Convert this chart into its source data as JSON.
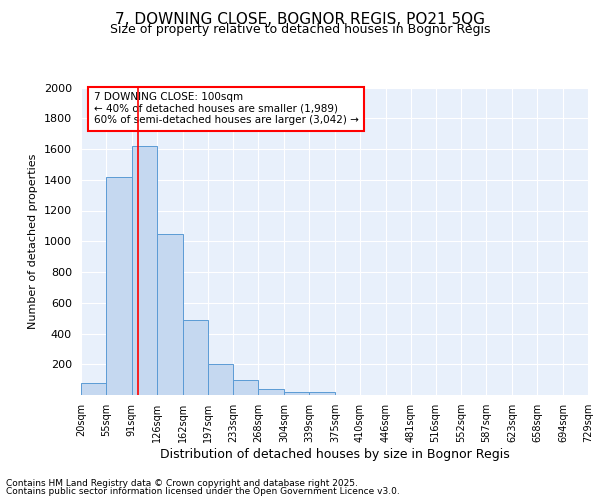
{
  "title1": "7, DOWNING CLOSE, BOGNOR REGIS, PO21 5QG",
  "title2": "Size of property relative to detached houses in Bognor Regis",
  "xlabel": "Distribution of detached houses by size in Bognor Regis",
  "ylabel": "Number of detached properties",
  "bin_labels": [
    "20sqm",
    "55sqm",
    "91sqm",
    "126sqm",
    "162sqm",
    "197sqm",
    "233sqm",
    "268sqm",
    "304sqm",
    "339sqm",
    "375sqm",
    "410sqm",
    "446sqm",
    "481sqm",
    "516sqm",
    "552sqm",
    "587sqm",
    "623sqm",
    "658sqm",
    "694sqm",
    "729sqm"
  ],
  "bin_edges": [
    20,
    55,
    91,
    126,
    162,
    197,
    233,
    268,
    304,
    339,
    375,
    410,
    446,
    481,
    516,
    552,
    587,
    623,
    658,
    694,
    729
  ],
  "bar_heights": [
    80,
    1420,
    1620,
    1050,
    490,
    200,
    100,
    40,
    20,
    20,
    0,
    0,
    0,
    0,
    0,
    0,
    0,
    0,
    0,
    0
  ],
  "bar_color": "#c5d8f0",
  "bar_edge_color": "#5b9bd5",
  "red_line_x": 100,
  "annotation_title": "7 DOWNING CLOSE: 100sqm",
  "annotation_line2": "← 40% of detached houses are smaller (1,989)",
  "annotation_line3": "60% of semi-detached houses are larger (3,042) →",
  "footer1": "Contains HM Land Registry data © Crown copyright and database right 2025.",
  "footer2": "Contains public sector information licensed under the Open Government Licence v3.0.",
  "bg_color": "#ffffff",
  "plot_bg_color": "#e8f0fb",
  "grid_color": "#ffffff",
  "ylim": [
    0,
    2000
  ],
  "yticks": [
    0,
    200,
    400,
    600,
    800,
    1000,
    1200,
    1400,
    1600,
    1800,
    2000
  ]
}
